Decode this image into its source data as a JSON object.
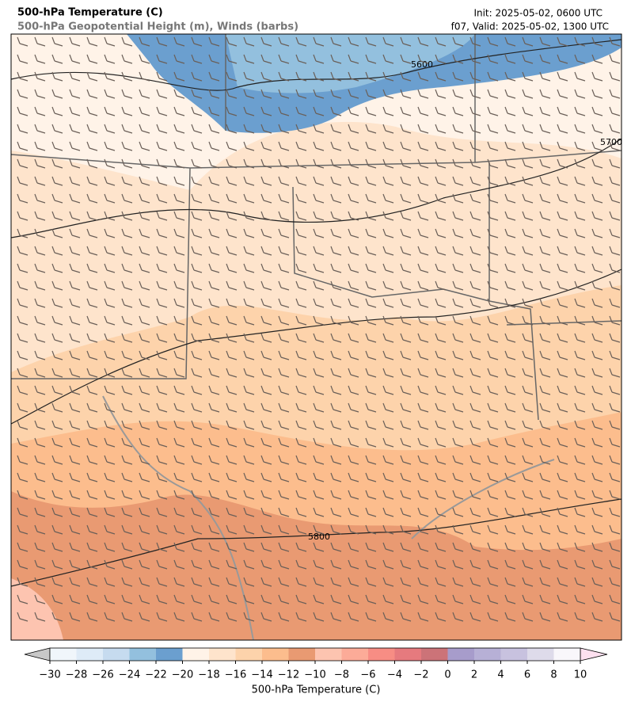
{
  "header": {
    "title": "500-hPa Temperature (C)",
    "subtitle": "500-hPa Geopotential Height (m), Winds (barbs)",
    "init": "Init: 2025-05-02, 0600 UTC",
    "valid": "f07, Valid: 2025-05-02, 1300 UTC"
  },
  "contour_labels": [
    5600,
    5700,
    5800
  ],
  "colorbar": {
    "label": "500-hPa Temperature (C)",
    "ticks": [
      {
        "value": -30,
        "label": "−30"
      },
      {
        "value": -28,
        "label": "−28"
      },
      {
        "value": -26,
        "label": "−26"
      },
      {
        "value": -24,
        "label": "−24"
      },
      {
        "value": -22,
        "label": "−22"
      },
      {
        "value": -20,
        "label": "−20"
      },
      {
        "value": -18,
        "label": "−18"
      },
      {
        "value": -16,
        "label": "−16"
      },
      {
        "value": -14,
        "label": "−14"
      },
      {
        "value": -12,
        "label": "−12"
      },
      {
        "value": -10,
        "label": "−10"
      },
      {
        "value": -8,
        "label": "−8"
      },
      {
        "value": -6,
        "label": "−6"
      },
      {
        "value": -4,
        "label": "−4"
      },
      {
        "value": -2,
        "label": "−2"
      },
      0,
      2,
      4,
      6,
      8,
      10
    ],
    "colors": [
      "#f0f6fb",
      "#deebf7",
      "#c6dbef",
      "#93c0de",
      "#6b9fcf",
      "#fff3e8",
      "#fee4cc",
      "#fdd3ab",
      "#fcbd8d",
      "#e99a72",
      "#fdc4b0",
      "#fcab98",
      "#f78d84",
      "#e67a7e",
      "#cc7378",
      "#a79ccb",
      "#b7b0d6",
      "#c8c2df",
      "#dedbea",
      "#f9f7fb"
    ],
    "under_color": "#c8c8c8",
    "over_color": "#fde0ef"
  }
}
